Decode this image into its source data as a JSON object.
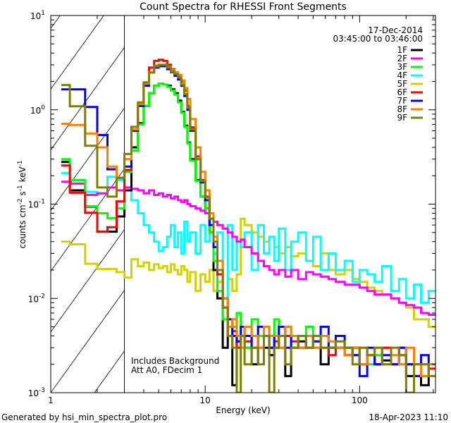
{
  "chart_data": {
    "type": "line",
    "title": "Count Spectra for RHESSI Front Segments",
    "xlabel": "Energy (keV)",
    "ylabel": "counts cm-2 s-1 keV-1",
    "ylabel_parts": {
      "base": "counts cm",
      "e1": "-2",
      "mid": " s",
      "e2": "-1",
      "mid2": " keV",
      "e3": "-1"
    },
    "xscale": "log",
    "yscale": "log",
    "xlim": [
      1,
      310
    ],
    "ylim": [
      0.001,
      10
    ],
    "x_tick_labels": [
      {
        "value": 1,
        "label": "1"
      },
      {
        "value": 10,
        "label": "10"
      },
      {
        "value": 100,
        "label": "100"
      }
    ],
    "y_tick_labels": [
      {
        "value": 10,
        "base": "10",
        "exp": "1"
      },
      {
        "value": 1,
        "base": "10",
        "exp": "0"
      },
      {
        "value": 0.1,
        "base": "10",
        "exp": "-1"
      },
      {
        "value": 0.01,
        "base": "10",
        "exp": "-2"
      },
      {
        "value": 0.001,
        "base": "10",
        "exp": "-3"
      }
    ],
    "hatched_region_keV": [
      1,
      3
    ],
    "legend_placement": "top-right",
    "annotations": {
      "date": "17-Dec-2014",
      "time_range": "03:45:00 to 03:46:00",
      "background": "Includes Background",
      "attenuator": "Att A0, FDecim 1"
    },
    "energy_edges": [
      1.17,
      1.33,
      1.67,
      2.0,
      2.33,
      2.67,
      3.0,
      3.33,
      3.67,
      4.0,
      4.33,
      4.67,
      5.0,
      5.33,
      5.67,
      6.0,
      6.33,
      6.67,
      7.0,
      7.33,
      7.67,
      8.0,
      8.67,
      9.33,
      10,
      10.67,
      11.33,
      12,
      13,
      14,
      15,
      16,
      17,
      18,
      20,
      22,
      24,
      26,
      28,
      30,
      33,
      36,
      40,
      45,
      50,
      56,
      63,
      70,
      80,
      90,
      100,
      112,
      125,
      140,
      160,
      180,
      200,
      225,
      250,
      280,
      310
    ],
    "series": [
      {
        "name": "5F",
        "color": "#d2d200",
        "values": [
          0.04,
          0.0375,
          0.0233,
          0.0205,
          0.0205,
          0.019,
          0.0166,
          0.026,
          0.022,
          0.024,
          0.02,
          0.023,
          0.021,
          0.022,
          0.019,
          0.023,
          0.02,
          0.018,
          0.022,
          0.02,
          0.015,
          0.019,
          0.012,
          0.018,
          0.015,
          0.02,
          0.012,
          0.015,
          0.01,
          0.016,
          0.012,
          0.018,
          0.07,
          0.06,
          0.05,
          0.045,
          0.04,
          0.045,
          0.035,
          0.03,
          0.035,
          0.028,
          0.03,
          0.025,
          0.022,
          0.03,
          0.02,
          0.018,
          0.02,
          0.016,
          0.015,
          0.013,
          0.012,
          0.011,
          0.01,
          0.009,
          0.008,
          0.006,
          0.006,
          0.005
        ]
      },
      {
        "name": "4F",
        "color": "#00ffff",
        "values": [
          0.213,
          0.18,
          0.135,
          0.13,
          0.195,
          0.18,
          0.14,
          0.11,
          0.08,
          0.06,
          0.05,
          0.04,
          0.032,
          0.035,
          0.045,
          0.06,
          0.035,
          0.05,
          0.03,
          0.065,
          0.04,
          0.05,
          0.03,
          0.06,
          0.04,
          0.06,
          0.03,
          0.05,
          0.01,
          0.06,
          0.02,
          0.04,
          0.035,
          0.05,
          0.02,
          0.06,
          0.03,
          0.045,
          0.025,
          0.055,
          0.02,
          0.04,
          0.05,
          0.025,
          0.045,
          0.02,
          0.03,
          0.02,
          0.025,
          0.015,
          0.02,
          0.018,
          0.015,
          0.022,
          0.012,
          0.016,
          0.01,
          0.014,
          0.009,
          0.012
        ]
      },
      {
        "name": "2F",
        "color": "#ff00ff",
        "values": [
          0.173,
          0.165,
          0.125,
          0.13,
          0.15,
          0.14,
          0.15,
          0.145,
          0.14,
          0.13,
          0.14,
          0.125,
          0.13,
          0.12,
          0.125,
          0.115,
          0.12,
          0.11,
          0.105,
          0.11,
          0.1,
          0.095,
          0.09,
          0.085,
          0.08,
          0.07,
          0.065,
          0.06,
          0.055,
          0.05,
          0.045,
          0.04,
          0.042,
          0.035,
          0.03,
          0.025,
          0.022,
          0.02,
          0.018,
          0.02,
          0.017,
          0.02,
          0.016,
          0.019,
          0.018,
          0.017,
          0.016,
          0.015,
          0.014,
          0.014,
          0.013,
          0.012,
          0.011,
          0.011,
          0.01,
          0.009,
          0.0085,
          0.008,
          0.007,
          0.0067
        ]
      },
      {
        "name": "1F",
        "color": "#000000",
        "values": [
          0.28,
          0.14,
          0.094,
          0.051,
          0.051,
          0.074,
          0.14,
          0.4,
          0.72,
          1.1,
          1.5,
          1.8,
          1.9,
          1.85,
          1.8,
          1.65,
          1.5,
          1.25,
          0.95,
          0.68,
          0.45,
          0.3,
          0.18,
          0.12,
          0.09,
          0.05,
          0.02,
          0.01,
          0.003,
          0.005,
          0.0012,
          0.0035,
          0.004,
          0.003,
          0.002,
          0.004,
          0.003,
          0.0025,
          0.003,
          0.004,
          0.0015,
          0.003,
          0.0035,
          0.003,
          0.004,
          0.002,
          0.003,
          0.003,
          0.0025,
          0.003,
          0.002,
          0.0025,
          0.002,
          0.0022,
          0.002,
          0.003,
          0.0015,
          0.002,
          0.0012,
          0.002
        ]
      },
      {
        "name": "3F",
        "color": "#00ff00",
        "values": [
          0.3,
          0.18,
          0.095,
          0.08,
          0.071,
          0.09,
          0.22,
          0.37,
          0.7,
          1.1,
          1.5,
          1.8,
          1.9,
          1.85,
          1.75,
          1.6,
          1.45,
          1.2,
          0.93,
          0.66,
          0.44,
          0.29,
          0.176,
          0.12,
          0.09,
          0.05,
          0.025,
          0.012,
          0.006,
          0.004,
          0.005,
          0.007,
          0.004,
          0.003,
          0.006,
          0.004,
          0.005,
          0.003,
          0.006,
          0.004,
          0.005,
          0.003,
          0.004,
          0.005,
          0.003,
          0.004,
          0.003,
          0.0035,
          0.003,
          0.0025,
          0.003,
          0.002,
          0.0025,
          0.003,
          0.002,
          0.0025,
          0.002,
          0.002,
          0.0015,
          0.002
        ]
      },
      {
        "name": "6F",
        "color": "#ff0000",
        "values": [
          0.257,
          0.132,
          0.081,
          0.051,
          0.057,
          0.107,
          0.23,
          0.6,
          1.1,
          1.9,
          2.8,
          3.3,
          3.4,
          3.3,
          3.0,
          2.7,
          2.5,
          2.3,
          2.0,
          1.6,
          1.1,
          0.65,
          0.32,
          0.18,
          0.12,
          0.07,
          0.035,
          0.018,
          0.008,
          0.004,
          0.0045,
          0.003,
          0.004,
          0.0035,
          0.004,
          0.003,
          0.004,
          0.003,
          0.0035,
          0.003,
          0.004,
          0.0035,
          0.003,
          0.003,
          0.0035,
          0.003,
          0.0025,
          0.003,
          0.0025,
          0.003,
          0.002,
          0.0025,
          0.002,
          0.003,
          0.002,
          0.0025,
          0.002,
          0.0015,
          0.002,
          0.0018
        ]
      },
      {
        "name": "7F",
        "color": "#0000ff",
        "values": [
          1.65,
          1.65,
          1.07,
          0.54,
          0.234,
          0.19,
          0.25,
          0.6,
          1.1,
          1.8,
          2.5,
          2.8,
          2.9,
          2.9,
          2.7,
          2.5,
          2.3,
          2.1,
          1.8,
          1.4,
          1.0,
          0.6,
          0.3,
          0.17,
          0.11,
          0.06,
          0.035,
          0.02,
          0.01,
          0.006,
          0.004,
          0.0035,
          0.005,
          0.004,
          0.003,
          0.005,
          0.004,
          0.003,
          0.004,
          0.005,
          0.003,
          0.004,
          0.003,
          0.004,
          0.0035,
          0.005,
          0.003,
          0.004,
          0.003,
          0.0025,
          0.0015,
          0.003,
          0.002,
          0.0025,
          0.002,
          0.003,
          0.002,
          0.0015,
          0.0025,
          0.002
        ]
      },
      {
        "name": "8F",
        "color": "#ff8000",
        "values": [
          0.71,
          0.69,
          0.56,
          0.4,
          0.25,
          0.19,
          0.3,
          0.62,
          1.15,
          1.9,
          2.5,
          2.9,
          3.0,
          3.0,
          2.85,
          2.65,
          2.5,
          2.35,
          2.05,
          1.7,
          1.3,
          0.8,
          0.4,
          0.22,
          0.14,
          0.08,
          0.045,
          0.025,
          0.01,
          0.005,
          0.006,
          0.004,
          0.003,
          0.005,
          0.004,
          0.003,
          0.005,
          0.004,
          0.004,
          0.003,
          0.005,
          0.004,
          0.003,
          0.004,
          0.003,
          0.004,
          0.0035,
          0.003,
          0.0025,
          0.003,
          0.002,
          0.0025,
          0.003,
          0.002,
          0.0025,
          0.002,
          0.003,
          0.002,
          0.0015,
          0.002
        ]
      },
      {
        "name": "9F",
        "color": "#808000",
        "values": [
          1.83,
          1.09,
          0.416,
          0.15,
          0.12,
          0.19,
          0.34,
          0.66,
          1.2,
          1.96,
          2.48,
          2.93,
          3.0,
          3.0,
          2.8,
          2.54,
          2.4,
          2.2,
          1.85,
          1.47,
          1.05,
          0.62,
          0.3,
          0.176,
          0.118,
          0.07,
          0.04,
          0.02,
          0.008,
          0.004,
          0.003,
          0.001,
          0.004,
          0.002,
          0.003,
          0.002,
          0.004,
          0.001,
          0.003,
          0.004,
          0.002,
          0.003,
          0.004,
          0.003,
          0.004,
          0.003,
          0.003,
          0.0035,
          0.003,
          0.002,
          0.003,
          0.0025,
          0.003,
          0.002,
          0.003,
          0.0025,
          0.001,
          0.002,
          0.002,
          0.0015
        ]
      }
    ],
    "legend_order": [
      "1F",
      "2F",
      "3F",
      "4F",
      "5F",
      "6F",
      "7F",
      "8F",
      "9F"
    ]
  },
  "footer": {
    "generated_by": "Generated by hsi_min_spectra_plot.pro",
    "timestamp": "18-Apr-2023 11:10"
  }
}
